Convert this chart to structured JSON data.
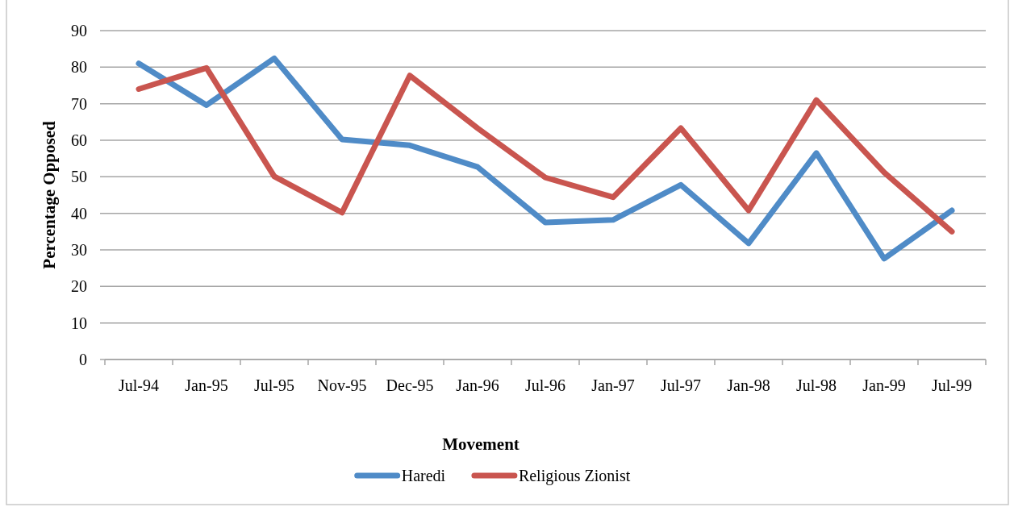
{
  "chart_data": {
    "type": "line",
    "ylabel": "Percentage Opposed",
    "legend_title": "Movement",
    "categories": [
      "Jul-94",
      "Jan-95",
      "Jul-95",
      "Nov-95",
      "Dec-95",
      "Jan-96",
      "Jul-96",
      "Jan-97",
      "Jul-97",
      "Jan-98",
      "Jul-98",
      "Jan-99",
      "Jul-99"
    ],
    "series": [
      {
        "name": "Haredi",
        "color": "#4f8bc7",
        "values": [
          81,
          69.6,
          82.4,
          60.2,
          58.6,
          52.7,
          37.5,
          38.2,
          47.8,
          31.8,
          56.5,
          27.6,
          40.8
        ]
      },
      {
        "name": "Religious Zionist",
        "color": "#c9554f",
        "values": [
          74,
          79.8,
          50.1,
          40.2,
          77.7,
          63.3,
          49.8,
          44.4,
          63.3,
          40.8,
          71,
          51.2,
          35
        ]
      }
    ],
    "ylim": [
      0,
      90
    ],
    "yticks": [
      0,
      10,
      20,
      30,
      40,
      50,
      60,
      70,
      80,
      90
    ],
    "grid": "y",
    "legend": "bottom"
  }
}
